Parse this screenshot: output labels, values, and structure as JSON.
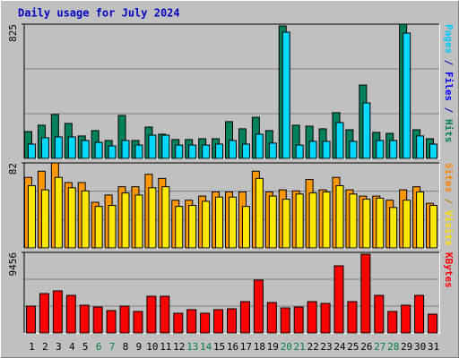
{
  "chart_data": [
    {
      "type": "bar",
      "title": "Daily usage for July 2024",
      "ylim": [
        0,
        825
      ],
      "yticks": [
        825
      ],
      "legend_parts": [
        {
          "text": "Pages",
          "color": "#00c8ff"
        },
        {
          "text": " / ",
          "color": "#0000c0"
        },
        {
          "text": "Files",
          "color": "#0000ff"
        },
        {
          "text": " / ",
          "color": "#0000c0"
        },
        {
          "text": "Hits",
          "color": "#00805c"
        }
      ],
      "series": [
        {
          "color": "#00805c",
          "values": [
            165,
            204,
            270,
            215,
            138,
            171,
            110,
            264,
            110,
            193,
            149,
            116,
            116,
            121,
            121,
            226,
            182,
            253,
            171,
            814,
            204,
            198,
            182,
            281,
            176,
            451,
            160,
            154,
            825,
            176,
            121
          ]
        },
        {
          "color": "#00d8ff",
          "values": [
            88,
            127,
            132,
            132,
            110,
            99,
            77,
            110,
            82,
            143,
            143,
            82,
            82,
            82,
            88,
            110,
            88,
            149,
            94,
            776,
            82,
            105,
            105,
            220,
            105,
            341,
            110,
            110,
            770,
            138,
            88
          ]
        }
      ]
    },
    {
      "type": "bar",
      "ylim": [
        0,
        82
      ],
      "yticks": [
        82
      ],
      "legend_parts": [
        {
          "text": "Sites",
          "color": "#ff8000"
        },
        {
          "text": " / ",
          "color": "#c08000"
        },
        {
          "text": "Visits",
          "color": "#ffe000"
        }
      ],
      "series": [
        {
          "color": "#ff9800",
          "values": [
            68,
            74,
            82,
            63,
            63,
            44,
            51,
            59,
            59,
            71,
            67,
            46,
            46,
            50,
            54,
            54,
            54,
            74,
            54,
            56,
            55,
            66,
            56,
            68,
            56,
            50,
            50,
            46,
            56,
            59,
            43
          ]
        },
        {
          "color": "#ffe800",
          "values": [
            60,
            56,
            68,
            58,
            55,
            40,
            41,
            53,
            51,
            58,
            59,
            40,
            41,
            45,
            49,
            49,
            40,
            67,
            50,
            47,
            52,
            53,
            54,
            60,
            52,
            47,
            48,
            39,
            46,
            54,
            41
          ]
        }
      ]
    },
    {
      "type": "bar",
      "ylim": [
        0,
        9456
      ],
      "yticks": [
        9456
      ],
      "legend_parts": [
        {
          "text": "KBytes",
          "color": "#ff0000"
        }
      ],
      "series": [
        {
          "color": "#ff0000",
          "values": [
            3152,
            4623,
            4938,
            4413,
            3257,
            3047,
            2627,
            3152,
            2522,
            4308,
            4308,
            2312,
            2732,
            2312,
            2732,
            2837,
            3677,
            6199,
            3572,
            2942,
            3047,
            3677,
            3467,
            7880,
            3677,
            9246,
            4413,
            2522,
            3257,
            4413,
            2207
          ]
        }
      ],
      "categories": [
        "1",
        "2",
        "3",
        "4",
        "5",
        "6",
        "7",
        "8",
        "9",
        "10",
        "11",
        "12",
        "13",
        "14",
        "15",
        "16",
        "17",
        "18",
        "19",
        "20",
        "21",
        "22",
        "23",
        "24",
        "25",
        "26",
        "27",
        "28",
        "29",
        "30",
        "31"
      ],
      "category_colors": [
        "#000000",
        "#000000",
        "#000000",
        "#000000",
        "#000000",
        "#008040",
        "#008040",
        "#000000",
        "#000000",
        "#000000",
        "#000000",
        "#000000",
        "#008040",
        "#008040",
        "#000000",
        "#000000",
        "#000000",
        "#000000",
        "#000000",
        "#008040",
        "#008040",
        "#000000",
        "#000000",
        "#000000",
        "#000000",
        "#000000",
        "#008040",
        "#008040",
        "#000000",
        "#000000",
        "#000000"
      ]
    }
  ]
}
